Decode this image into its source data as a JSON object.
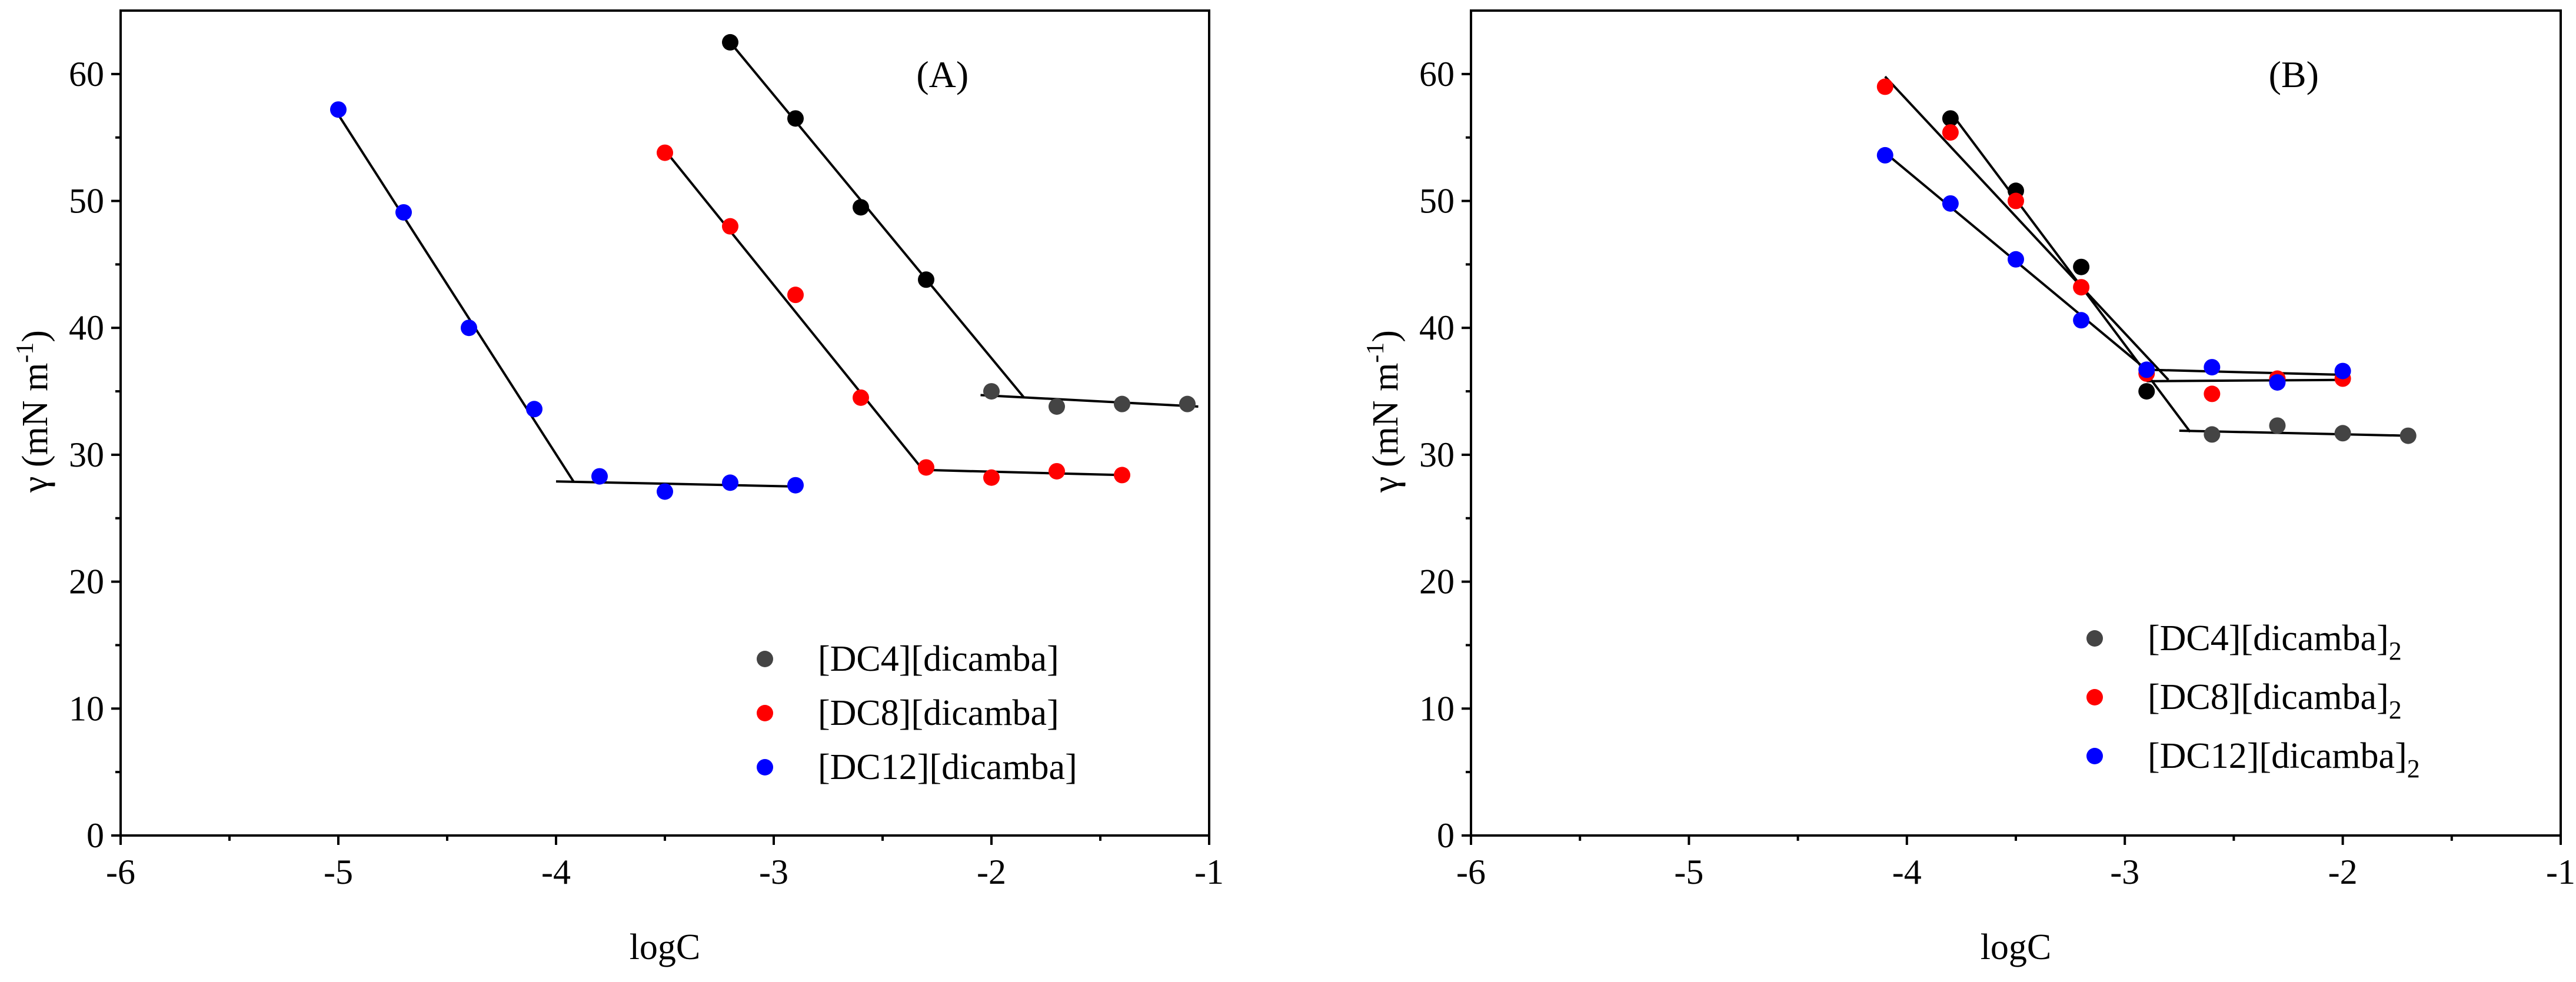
{
  "chart_data": [
    {
      "type": "scatter",
      "panel_label": "(A)",
      "xlabel": "logC",
      "ylabel": "γ (mN m",
      "ylabel_sup": "-1",
      "ylabel_close": ")",
      "xlim": [
        -6,
        -1
      ],
      "ylim": [
        0,
        65
      ],
      "xticks": [
        -6,
        -5,
        -4,
        -3,
        -2,
        -1
      ],
      "yticks": [
        0,
        10,
        20,
        30,
        40,
        50,
        60
      ],
      "legend_position": "bottom-right",
      "series": [
        {
          "name": "[DC4][dicamba]",
          "legend_label": "[DC4][dicamba]",
          "color": "#000000",
          "legend_color": "#444444",
          "points": [
            [
              -3.2,
              62.5
            ],
            [
              -2.9,
              56.5
            ],
            [
              -2.6,
              49.5
            ],
            [
              -2.3,
              43.8
            ],
            [
              -2.0,
              35.0
            ],
            [
              -1.7,
              33.8
            ],
            [
              -1.4,
              34.0
            ],
            [
              -1.1,
              34.0
            ]
          ],
          "point_colors": [
            "#000000",
            "#000000",
            "#000000",
            "#000000",
            "#444444",
            "#444444",
            "#444444",
            "#444444"
          ],
          "fit_lines": [
            [
              [
                -3.2,
                62.5
              ],
              [
                -1.85,
                34.5
              ]
            ],
            [
              [
                -2.05,
                34.7
              ],
              [
                -1.05,
                33.8
              ]
            ]
          ]
        },
        {
          "name": "[DC8][dicamba]",
          "legend_label": "[DC8][dicamba]",
          "color": "#ff0000",
          "legend_color": "#ff0000",
          "points": [
            [
              -3.5,
              53.8
            ],
            [
              -3.2,
              48.0
            ],
            [
              -2.9,
              42.6
            ],
            [
              -2.6,
              34.5
            ],
            [
              -2.3,
              29.0
            ],
            [
              -2.0,
              28.2
            ],
            [
              -1.7,
              28.7
            ],
            [
              -1.4,
              28.4
            ]
          ],
          "fit_lines": [
            [
              [
                -3.5,
                54.0
              ],
              [
                -2.3,
                28.5
              ]
            ],
            [
              [
                -2.3,
                28.8
              ],
              [
                -1.4,
                28.4
              ]
            ]
          ]
        },
        {
          "name": "[DC12][dicamba]",
          "legend_label": "[DC12][dicamba]",
          "color": "#0000ff",
          "legend_color": "#0000ff",
          "points": [
            [
              -5.0,
              57.2
            ],
            [
              -4.7,
              49.1
            ],
            [
              -4.4,
              40.0
            ],
            [
              -4.1,
              33.6
            ],
            [
              -3.8,
              28.3
            ],
            [
              -3.5,
              27.1
            ],
            [
              -3.2,
              27.8
            ],
            [
              -2.9,
              27.6
            ]
          ],
          "fit_lines": [
            [
              [
                -5.0,
                56.8
              ],
              [
                -3.92,
                27.9
              ]
            ],
            [
              [
                -4.0,
                27.9
              ],
              [
                -2.9,
                27.5
              ]
            ]
          ]
        }
      ]
    },
    {
      "type": "scatter",
      "panel_label": "(B)",
      "xlabel": "logC",
      "ylabel": "γ (mN m",
      "ylabel_sup": "-1",
      "ylabel_close": ")",
      "xlim": [
        -6,
        -1
      ],
      "ylim": [
        0,
        65
      ],
      "xticks": [
        -6,
        -5,
        -4,
        -3,
        -2,
        -1
      ],
      "yticks": [
        0,
        10,
        20,
        30,
        40,
        50,
        60
      ],
      "legend_position": "bottom-right",
      "series": [
        {
          "name": "[DC4][dicamba]2",
          "legend_label": "[DC4][dicamba]",
          "legend_sub": "2",
          "color": "#000000",
          "legend_color": "#444444",
          "points": [
            [
              -3.8,
              56.5
            ],
            [
              -3.5,
              50.8
            ],
            [
              -3.2,
              44.8
            ],
            [
              -2.9,
              35.0
            ],
            [
              -2.6,
              31.6
            ],
            [
              -2.3,
              32.3
            ],
            [
              -2.0,
              31.7
            ],
            [
              -1.7,
              31.5
            ]
          ],
          "point_colors": [
            "#000000",
            "#000000",
            "#000000",
            "#000000",
            "#444444",
            "#444444",
            "#444444",
            "#444444"
          ],
          "fit_lines": [
            [
              [
                -3.8,
                57.0
              ],
              [
                -2.7,
                31.8
              ]
            ],
            [
              [
                -2.75,
                31.9
              ],
              [
                -1.7,
                31.5
              ]
            ]
          ]
        },
        {
          "name": "[DC8][dicamba]2",
          "legend_label": "[DC8][dicamba]",
          "legend_sub": "2",
          "color": "#ff0000",
          "legend_color": "#ff0000",
          "points": [
            [
              -4.1,
              59.0
            ],
            [
              -3.8,
              55.4
            ],
            [
              -3.5,
              50.0
            ],
            [
              -3.2,
              43.2
            ],
            [
              -2.9,
              36.4
            ],
            [
              -2.6,
              34.8
            ],
            [
              -2.3,
              36.0
            ],
            [
              -2.0,
              36.0
            ]
          ],
          "fit_lines": [
            [
              [
                -4.1,
                59.8
              ],
              [
                -2.8,
                35.9
              ]
            ],
            [
              [
                -2.9,
                35.8
              ],
              [
                -2.0,
                35.9
              ]
            ]
          ]
        },
        {
          "name": "[DC12][dicamba]2",
          "legend_label": "[DC12][dicamba]",
          "legend_sub": "2",
          "color": "#0000ff",
          "legend_color": "#0000ff",
          "points": [
            [
              -4.1,
              53.6
            ],
            [
              -3.8,
              49.8
            ],
            [
              -3.5,
              45.4
            ],
            [
              -3.2,
              40.6
            ],
            [
              -2.9,
              36.7
            ],
            [
              -2.6,
              36.9
            ],
            [
              -2.3,
              35.7
            ],
            [
              -2.0,
              36.6
            ]
          ],
          "fit_lines": [
            [
              [
                -4.1,
                53.8
              ],
              [
                -2.9,
                36.7
              ]
            ],
            [
              [
                -2.9,
                36.7
              ],
              [
                -2.0,
                36.3
              ]
            ]
          ]
        }
      ]
    }
  ]
}
